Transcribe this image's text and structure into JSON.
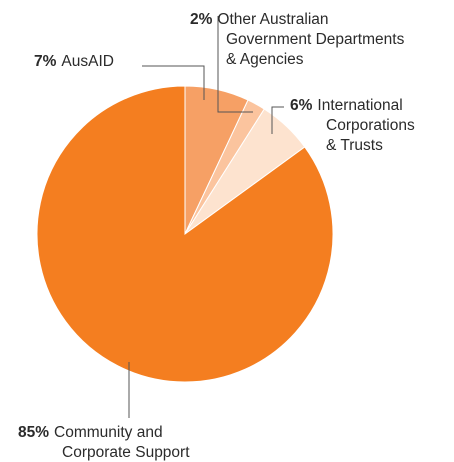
{
  "chart_data": {
    "type": "pie",
    "title": "",
    "start_angle_deg": 0,
    "direction": "clockwise",
    "slices": [
      {
        "percent_label": "7%",
        "value": 7,
        "label_lines": [
          "AusAID"
        ],
        "color": "#f6a065"
      },
      {
        "percent_label": "2%",
        "value": 2,
        "label_lines": [
          "Other Australian",
          "Government Departments",
          "& Agencies"
        ],
        "color": "#fbc49e"
      },
      {
        "percent_label": "6%",
        "value": 6,
        "label_lines": [
          "International",
          "Corporations",
          "& Trusts"
        ],
        "color": "#fde3cf"
      },
      {
        "percent_label": "85%",
        "value": 85,
        "label_lines": [
          "Community and",
          "Corporate Support"
        ],
        "color": "#f47e20"
      }
    ]
  }
}
